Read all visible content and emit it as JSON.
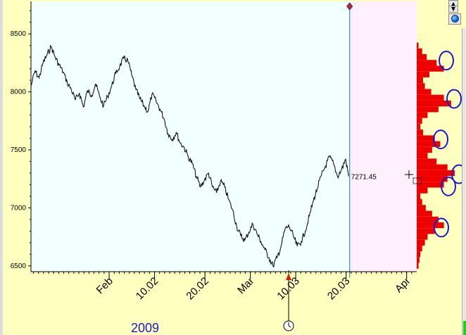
{
  "colors": {
    "window_bg": "#ffffc0",
    "plot_bg": "#f2ffff",
    "future_bg": "#fff0ff",
    "price_line": "#000000",
    "cursor_line": "#1a7a9a",
    "volume_profile": "#ee0000",
    "highlight_ellipse": "#1a1acc",
    "year_label": "#1a1acc"
  },
  "controls": {
    "scroll_up_glyph": "▲",
    "scroll_down_glyph": "▼",
    "globe_icon": "globe-icon",
    "crosshair_icon": "crosshair-icon",
    "clock_icon": "clock-icon"
  },
  "chart_data": {
    "type": "line",
    "year_label": "2009",
    "y_ticks": [
      "8500",
      "8000",
      "7500",
      "7000",
      "6500"
    ],
    "y_tick_values": [
      8500,
      8000,
      7500,
      7000,
      6500
    ],
    "ylim": [
      6450,
      8780
    ],
    "x_ticks": [
      "Feb",
      "10.02",
      "20.02",
      "Mar",
      "10.03",
      "20.03",
      "Apr"
    ],
    "x_tick_days": [
      31,
      40,
      50,
      59,
      68,
      78,
      90
    ],
    "xlim": [
      15.5,
      92.0
    ],
    "cursor_day": 78.7,
    "last_price_label": "7271.45",
    "last_price": 7271.45,
    "series": [
      {
        "x": [
          15.5,
          16.3,
          17.1,
          17.9,
          18.7,
          19.5,
          20.3,
          21.1,
          21.9,
          22.7,
          23.5,
          24.3,
          25.1,
          25.9,
          26.7,
          27.5,
          28.3,
          29.1,
          29.9,
          30.7,
          31.5,
          32.3,
          33.1,
          33.9,
          34.7,
          35.5,
          36.3,
          37.1,
          37.9,
          38.7,
          39.5,
          40.3,
          41.1,
          41.9,
          42.7,
          43.5,
          44.3,
          45.1,
          45.9,
          46.7,
          47.5,
          48.3,
          49.1,
          49.9,
          50.7,
          51.5,
          52.3,
          53.1,
          53.9,
          54.7,
          55.5,
          56.3,
          57.1,
          57.9,
          58.7,
          59.5,
          60.3,
          61.1,
          61.9,
          62.7,
          63.5,
          64.3,
          65.1,
          65.9,
          66.7,
          67.5,
          68.3,
          69.1,
          69.9,
          70.7,
          71.5,
          72.3,
          73.1,
          73.9,
          74.7,
          75.5,
          76.3,
          77.1,
          77.9,
          78.5
        ],
        "y": [
          8050,
          8180,
          8120,
          8250,
          8320,
          8390,
          8300,
          8230,
          8170,
          8080,
          8020,
          7930,
          7990,
          7870,
          8010,
          7970,
          8070,
          7960,
          7880,
          7960,
          8050,
          8160,
          8220,
          8290,
          8270,
          8140,
          8020,
          7940,
          7880,
          7830,
          7980,
          7920,
          7850,
          7770,
          7640,
          7590,
          7650,
          7560,
          7520,
          7440,
          7380,
          7270,
          7180,
          7240,
          7300,
          7180,
          7130,
          7230,
          7180,
          7070,
          6980,
          6840,
          6760,
          6720,
          6790,
          6860,
          6780,
          6710,
          6640,
          6570,
          6500,
          6570,
          6670,
          6820,
          6840,
          6760,
          6670,
          6710,
          6800,
          6930,
          7060,
          7170,
          7280,
          7360,
          7440,
          7380,
          7270,
          7330,
          7420,
          7271.45
        ]
      }
    ],
    "volume_profile": {
      "price_levels": [
        8400,
        8350,
        8300,
        8250,
        8200,
        8150,
        8100,
        8050,
        8000,
        7950,
        7900,
        7850,
        7800,
        7750,
        7700,
        7650,
        7600,
        7550,
        7500,
        7450,
        7400,
        7350,
        7300,
        7250,
        7200,
        7150,
        7100,
        7050,
        7000,
        6950,
        6900,
        6850,
        6800,
        6750,
        6700,
        6650,
        6600,
        6550,
        6500
      ],
      "volumes": [
        2,
        6,
        11,
        22,
        30,
        14,
        7,
        9,
        16,
        30,
        38,
        24,
        12,
        6,
        4,
        7,
        20,
        26,
        17,
        12,
        22,
        34,
        42,
        34,
        30,
        12,
        4,
        6,
        10,
        17,
        24,
        30,
        20,
        12,
        9,
        6,
        4,
        3,
        2
      ]
    },
    "highlighted_levels": [
      8270,
      7940,
      7590,
      7290,
      7185,
      6830
    ]
  }
}
